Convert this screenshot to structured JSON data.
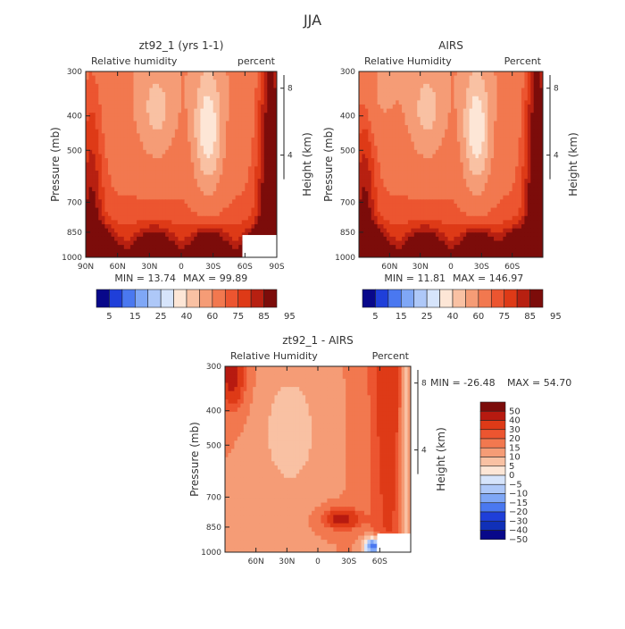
{
  "figure": {
    "season_title": "JJA"
  },
  "chart_data": [
    {
      "type": "heatmap",
      "id": "model",
      "title": "zt92_1 (yrs 1-1)",
      "subtitle_left": "Relative humidity",
      "subtitle_right": "percent",
      "ylabel": "Pressure (mb)",
      "ylabel_right": "Height (km)",
      "x_ticks": [
        "90N",
        "60N",
        "30N",
        "0",
        "30S",
        "60S",
        "90S"
      ],
      "x_range": [
        90,
        -90
      ],
      "y_ticks": [
        300,
        400,
        500,
        700,
        850,
        1000
      ],
      "y_range": [
        1000,
        300
      ],
      "y_scale": "log",
      "height_ticks": [
        8,
        4
      ],
      "min_label": "MIN =   13.74",
      "max_label": "MAX =   99.89",
      "min": 13.74,
      "max": 99.89,
      "levels": [
        5,
        15,
        25,
        40,
        60,
        75,
        85,
        95
      ],
      "colorbar_labels": [
        "5",
        "15",
        "25",
        "40",
        "60",
        "75",
        "85",
        "95"
      ],
      "colorbar_colors": [
        "#08088a",
        "#1f3fd9",
        "#4a78f0",
        "#7fa7f6",
        "#aec8f8",
        "#d6e4fb",
        "#fde6d6",
        "#f9c1a3",
        "#f59c76",
        "#f2784f",
        "#ec5530",
        "#de3a17",
        "#b72011",
        "#7c0c0a"
      ],
      "masked_region": "near-surface corner near 60S-90S"
    },
    {
      "type": "heatmap",
      "id": "obs",
      "title": "AIRS",
      "subtitle_left": "Relative Humidity",
      "subtitle_right": "Percent",
      "ylabel": "Pressure (mb)",
      "ylabel_right": "Height (km)",
      "x_ticks": [
        "60N",
        "30N",
        "0",
        "30S",
        "60S"
      ],
      "x_range": [
        90,
        -90
      ],
      "y_ticks": [
        300,
        400,
        500,
        700,
        850,
        1000
      ],
      "y_range": [
        1000,
        300
      ],
      "y_scale": "log",
      "height_ticks": [
        8,
        4
      ],
      "min_label": "MIN =   11.81",
      "max_label": "MAX =  146.97",
      "min": 11.81,
      "max": 146.97,
      "levels": [
        5,
        15,
        25,
        40,
        60,
        75,
        85,
        95
      ],
      "colorbar_labels": [
        "5",
        "15",
        "25",
        "40",
        "60",
        "75",
        "85",
        "95"
      ],
      "colorbar_colors": [
        "#08088a",
        "#1f3fd9",
        "#4a78f0",
        "#7fa7f6",
        "#aec8f8",
        "#d6e4fb",
        "#fde6d6",
        "#f9c1a3",
        "#f59c76",
        "#f2784f",
        "#ec5530",
        "#de3a17",
        "#b72011",
        "#7c0c0a"
      ]
    },
    {
      "type": "heatmap",
      "id": "difference",
      "title": "zt92_1 - AIRS",
      "subtitle_left": "Relative Humidity",
      "subtitle_right": "Percent",
      "ylabel": "Pressure (mb)",
      "ylabel_right": "Height (km)",
      "x_ticks": [
        "60N",
        "30N",
        "0",
        "30S",
        "60S"
      ],
      "x_range": [
        90,
        -90
      ],
      "y_ticks": [
        300,
        400,
        500,
        700,
        850,
        1000
      ],
      "y_range": [
        1000,
        300
      ],
      "y_scale": "log",
      "height_ticks": [
        8,
        4
      ],
      "min_label": "MIN =  -26.48",
      "max_label": "MAX =   54.70",
      "min": -26.48,
      "max": 54.7,
      "levels": [
        50,
        40,
        30,
        20,
        15,
        10,
        5,
        0,
        -5,
        -10,
        -15,
        -20,
        -30,
        -40,
        -50
      ],
      "colorbar_labels": [
        "50",
        "40",
        "30",
        "20",
        "15",
        "10",
        "5",
        "0",
        "−5",
        "−10",
        "−15",
        "−20",
        "−30",
        "−40",
        "−50"
      ],
      "colorbar_colors": [
        "#7c0c0a",
        "#b71a10",
        "#de3a17",
        "#ec5530",
        "#f2784f",
        "#f59c76",
        "#f9c1a3",
        "#fde6d6",
        "#d6e4fb",
        "#aec8f8",
        "#7fa7f6",
        "#4a78f0",
        "#1f3fd9",
        "#1030b8",
        "#08088a"
      ]
    }
  ]
}
